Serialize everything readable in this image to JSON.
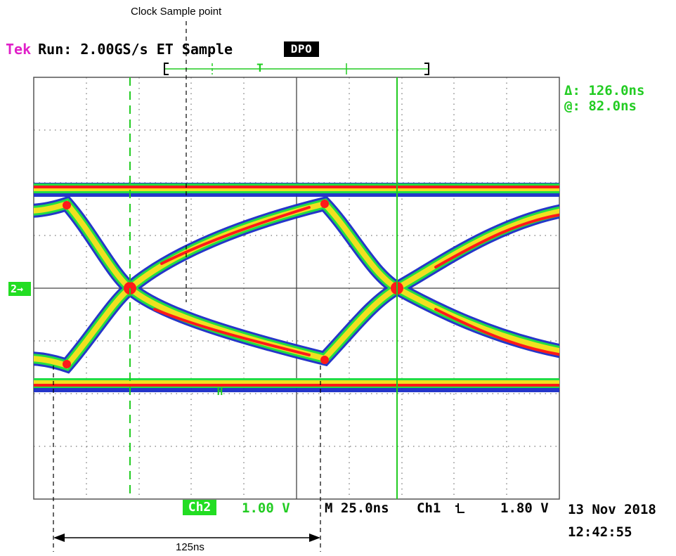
{
  "annotation": {
    "clock_sample_label": "Clock Sample point",
    "span_label": "125ns"
  },
  "header": {
    "brand": "Tek",
    "status": "Run: 2.00GS/s ET Sample",
    "mode_badge": "DPO",
    "trigger_marker": "T"
  },
  "cursor_readout": {
    "delta": "Δ: 126.0ns",
    "at": "@: 82.0ns"
  },
  "channel_marker": "2→",
  "footer": {
    "channel": "Ch2",
    "volts_per_div": "1.00 V",
    "timebase": "M 25.0ns",
    "trigger_source": "Ch1",
    "trigger_slope_icon": "falling-edge-icon",
    "trigger_level": "1.80 V",
    "date": "13 Nov 2018",
    "time": "12:42:55"
  },
  "colors": {
    "brand": "#e020c8",
    "readout": "#22cc22",
    "eye_hot": "#ff1a1a",
    "eye_warm": "#f0e020",
    "eye_mid": "#22dd44",
    "eye_cool": "#1a2cc8"
  }
}
